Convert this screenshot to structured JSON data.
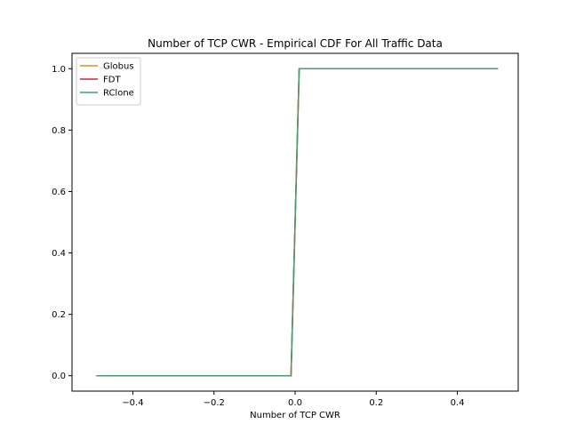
{
  "chart_data": {
    "type": "line",
    "title": "Number of TCP CWR - Empirical CDF For All Traffic Data",
    "xlabel": "Number of TCP CWR",
    "ylabel": "",
    "xlim": [
      -0.55,
      0.55
    ],
    "ylim": [
      -0.05,
      1.05
    ],
    "xticks": [
      -0.4,
      -0.2,
      0.0,
      0.2,
      0.4
    ],
    "xtick_labels": [
      "−0.4",
      "−0.2",
      "0.0",
      "0.2",
      "0.4"
    ],
    "yticks": [
      0.0,
      0.2,
      0.4,
      0.6,
      0.8,
      1.0
    ],
    "ytick_labels": [
      "0.0",
      "0.2",
      "0.4",
      "0.6",
      "0.8",
      "1.0"
    ],
    "grid": false,
    "legend_position": "top-left",
    "series": [
      {
        "name": "Globus",
        "color": "#c8962a",
        "x": [
          -0.49,
          -0.01,
          0.01,
          0.5
        ],
        "y": [
          0.0,
          0.0,
          1.0,
          1.0
        ]
      },
      {
        "name": "FDT",
        "color": "#d62728",
        "x": [
          -0.49,
          -0.01,
          0.01,
          0.5
        ],
        "y": [
          0.0,
          0.0,
          1.0,
          1.0
        ]
      },
      {
        "name": "RClone",
        "color": "#4a9a6e",
        "x": [
          -0.49,
          -0.01,
          0.01,
          0.5
        ],
        "y": [
          0.0,
          0.0,
          1.0,
          1.0
        ]
      }
    ]
  }
}
